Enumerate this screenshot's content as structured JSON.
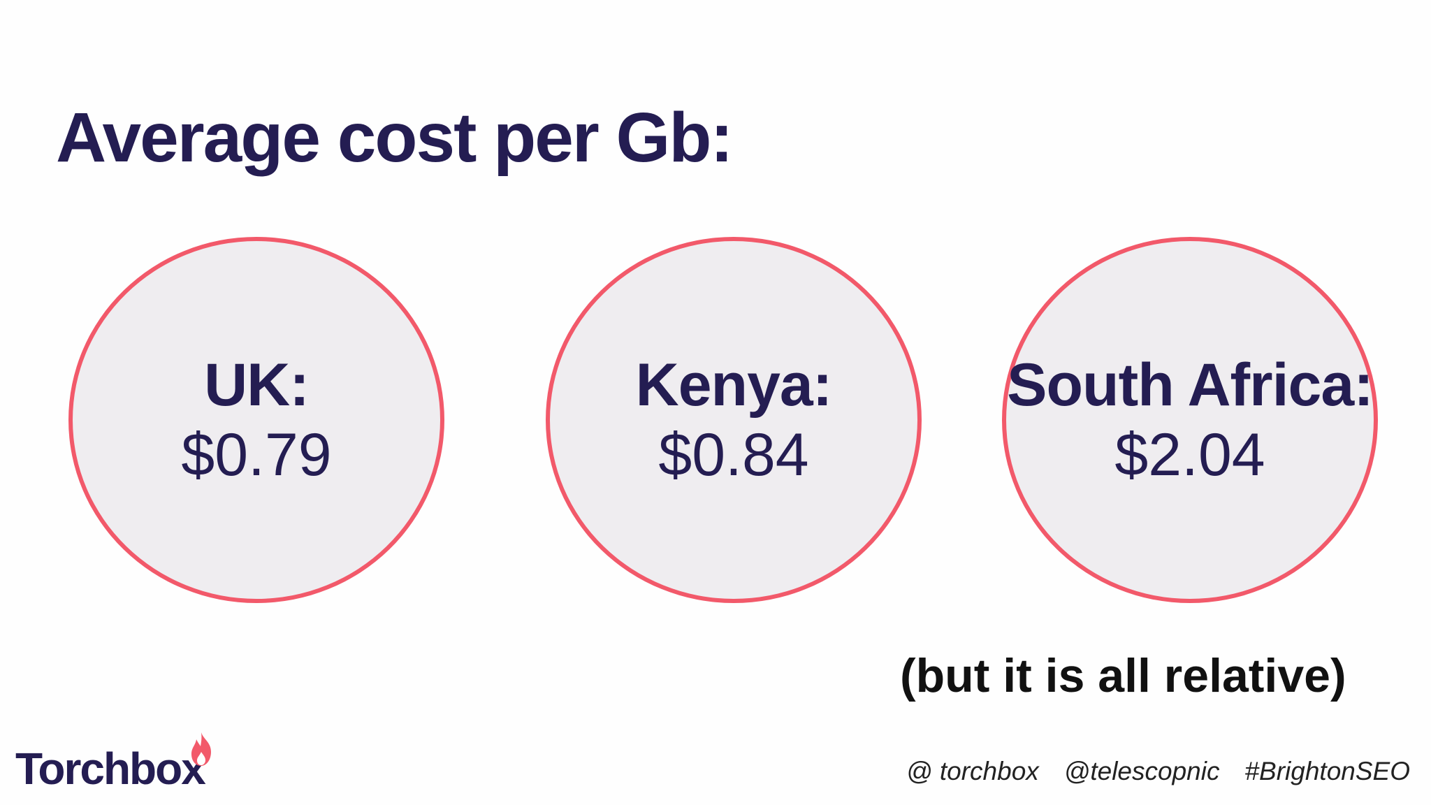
{
  "title": "Average cost per Gb:",
  "items": [
    {
      "country": "UK:",
      "price": "$0.79"
    },
    {
      "country": "Kenya:",
      "price": "$0.84"
    },
    {
      "country": "South Africa:",
      "price": "$2.04"
    }
  ],
  "note": "(but it is all relative)",
  "logo": {
    "text": "Torchbox",
    "icon": "flame-icon"
  },
  "footer": {
    "handle1": "@ torchbox",
    "handle2": "@telescopnic",
    "hashtag": "#BrightonSEO"
  },
  "colors": {
    "accent": "#f2596a",
    "text": "#241d52",
    "circle_fill": "#efedf0"
  }
}
